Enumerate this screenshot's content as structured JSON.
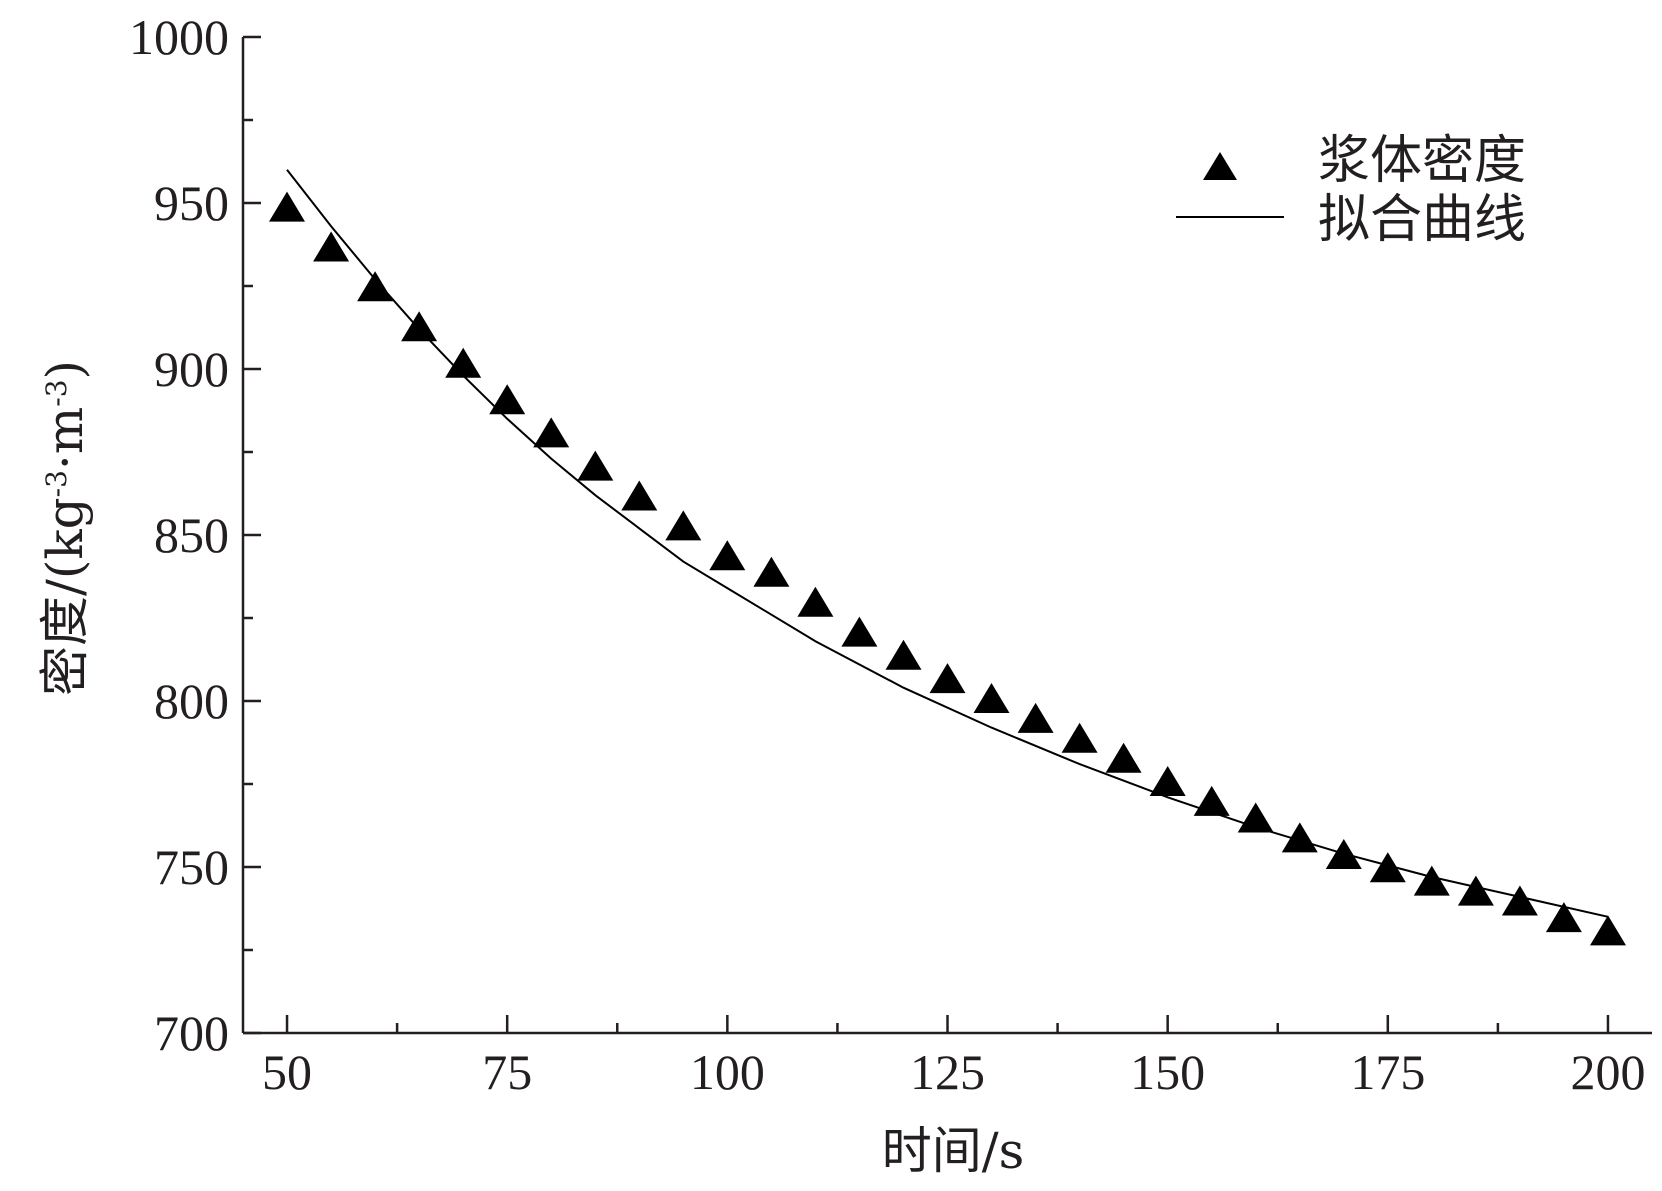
{
  "chart_data": {
    "type": "scatter",
    "xlabel": "时间/s",
    "ylabel": "密度/(kg·m)",
    "ylabel_exponents": [
      "-3",
      "-3"
    ],
    "xlim": [
      45,
      205
    ],
    "ylim": [
      700,
      1000
    ],
    "x_ticks": [
      50,
      75,
      100,
      125,
      150,
      175,
      200
    ],
    "x_minor_ticks": [
      62.5,
      87.5,
      112.5,
      137.5,
      162.5,
      187.5
    ],
    "y_ticks": [
      700,
      750,
      800,
      850,
      900,
      950,
      1000
    ],
    "y_minor_ticks": [
      725,
      775,
      825,
      875,
      925,
      975
    ],
    "grid": false,
    "legend_position": "top-right",
    "series": [
      {
        "name": "浆体密度",
        "kind": "scatter",
        "marker": "triangle",
        "color": "#000000",
        "x": [
          50,
          55,
          60,
          65,
          70,
          75,
          80,
          85,
          90,
          95,
          100,
          105,
          110,
          115,
          120,
          125,
          130,
          135,
          140,
          145,
          150,
          155,
          160,
          165,
          170,
          175,
          180,
          185,
          190,
          195,
          200
        ],
        "y": [
          948,
          936,
          924,
          912,
          901,
          890,
          880,
          870,
          861,
          852,
          843,
          838,
          829,
          820,
          813,
          806,
          800,
          794,
          788,
          782,
          775,
          769,
          764,
          758,
          753,
          749,
          745,
          742,
          739,
          734,
          730
        ]
      },
      {
        "name": "拟合曲线",
        "kind": "line",
        "color": "#000000",
        "x": [
          50,
          55,
          60,
          65,
          70,
          75,
          80,
          85,
          90,
          95,
          100,
          110,
          120,
          130,
          140,
          150,
          160,
          170,
          180,
          190,
          200
        ],
        "y": [
          960,
          943,
          927,
          912,
          898,
          885,
          873,
          862,
          852,
          842,
          834,
          818,
          804,
          792,
          781,
          771,
          762,
          754,
          747,
          741,
          735
        ]
      }
    ]
  }
}
